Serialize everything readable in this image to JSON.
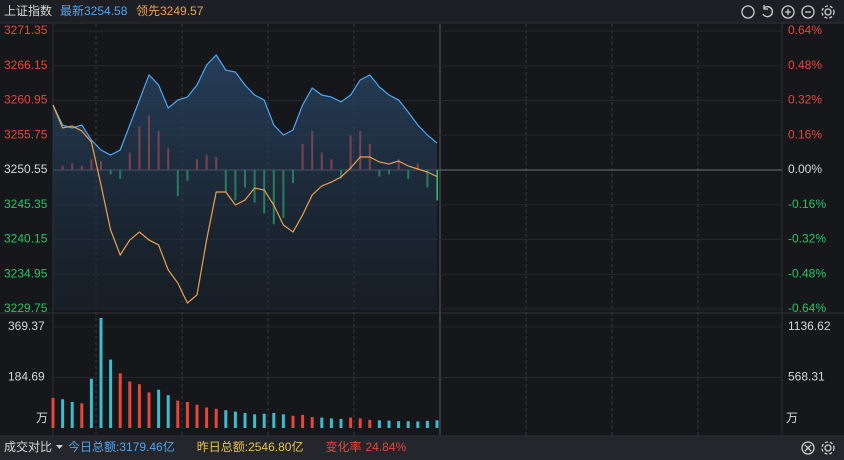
{
  "chart_data": [
    {
      "type": "line",
      "title": "上证指数",
      "series": [
        {
          "name": "最新",
          "color": "#4ea6f2",
          "values": [
            3260.28,
            3257.28,
            3256.84,
            3257.28,
            3255.04,
            3253.54,
            3252.79,
            3253.54,
            3257.28,
            3261.02,
            3264.77,
            3263.27,
            3259.83,
            3261.02,
            3261.47,
            3263.27,
            3266.26,
            3267.76,
            3265.51,
            3265.21,
            3263.27,
            3261.77,
            3261.02,
            3257.28,
            3255.79,
            3256.54,
            3260.28,
            3262.82,
            3261.77,
            3261.47,
            3260.73,
            3261.77,
            3264.02,
            3264.77,
            3262.97,
            3261.77,
            3261.02,
            3259.23,
            3257.28,
            3255.79,
            3254.58
          ]
        },
        {
          "name": "领先",
          "color": "#e9a24e",
          "values": [
            3260.28,
            3256.84,
            3257.13,
            3256.39,
            3254.74,
            3248.31,
            3241.57,
            3237.83,
            3240.08,
            3241.27,
            3240.08,
            3239.33,
            3235.59,
            3233.64,
            3230.65,
            3231.85,
            3240.08,
            3247.26,
            3247.26,
            3245.31,
            3246.06,
            3247.86,
            3247.56,
            3245.31,
            3242.32,
            3241.27,
            3243.82,
            3246.81,
            3248.16,
            3248.75,
            3249.5,
            3250.85,
            3252.5,
            3252.5,
            3251.75,
            3251.45,
            3251.9,
            3251.15,
            3250.7,
            3250.25,
            3249.57
          ]
        }
      ],
      "momentum": {
        "axis": "y2",
        "up_color": "#e8453c",
        "down_color": "#27c566",
        "values": [
          0,
          0.02,
          0.03,
          0.02,
          0.05,
          0.04,
          -0.02,
          -0.04,
          0.08,
          0.2,
          0.25,
          0.18,
          0.1,
          -0.12,
          -0.05,
          0.05,
          0.07,
          0.06,
          -0.1,
          -0.14,
          -0.08,
          -0.15,
          -0.2,
          -0.25,
          -0.22,
          -0.06,
          0.12,
          0.18,
          0.08,
          0.05,
          -0.04,
          0.16,
          0.18,
          0.12,
          -0.03,
          -0.02,
          0.05,
          -0.04,
          0.03,
          -0.08,
          -0.14
        ]
      },
      "ylim": [
        3229.75,
        3271.35
      ],
      "yticks": [
        3271.35,
        3266.15,
        3260.95,
        3255.75,
        3250.55,
        3245.35,
        3240.15,
        3234.95,
        3229.75
      ],
      "y2lim": [
        -0.64,
        0.64
      ],
      "y2ticks": [
        {
          "value": 0.64,
          "label": "0.64%"
        },
        {
          "value": 0.48,
          "label": "0.48%"
        },
        {
          "value": 0.32,
          "label": "0.32%"
        },
        {
          "value": 0.16,
          "label": "0.16%"
        },
        {
          "value": 0,
          "label": "0.00%"
        },
        {
          "value": -0.16,
          "label": "-0.16%"
        },
        {
          "value": -0.32,
          "label": "-0.32%"
        },
        {
          "value": -0.48,
          "label": "-0.48%"
        },
        {
          "value": -0.64,
          "label": "-0.64%"
        }
      ],
      "up_color": "#e8453c",
      "down_color": "#27c566",
      "grid": true
    },
    {
      "type": "bar",
      "unit": "万",
      "up_color": "#e8453c",
      "down_color": "#3cbccc",
      "values": [
        110,
        105,
        95,
        90,
        180,
        402,
        250,
        200,
        170,
        160,
        130,
        140,
        120,
        100,
        95,
        85,
        75,
        70,
        65,
        60,
        55,
        50,
        52,
        55,
        50,
        45,
        48,
        40,
        38,
        35,
        33,
        38,
        35,
        30,
        28,
        27,
        25,
        25,
        24,
        26,
        28
      ],
      "ylim": [
        0,
        402
      ],
      "yticks": [
        184.69,
        369.37
      ],
      "y2lim": [
        0,
        1237
      ],
      "y2ticks": [
        568.31,
        1136.62
      ]
    }
  ],
  "footer": {
    "label": "成交对比",
    "items": [
      {
        "name": "今日总额:",
        "value": "3179.46亿",
        "color": "#4ea6f2"
      },
      {
        "name": "昨日总额:",
        "value": "2546.80亿",
        "color": "#e8c24e"
      },
      {
        "name": "变化率",
        "value": "24.84%",
        "color": "#e8453c"
      }
    ]
  }
}
